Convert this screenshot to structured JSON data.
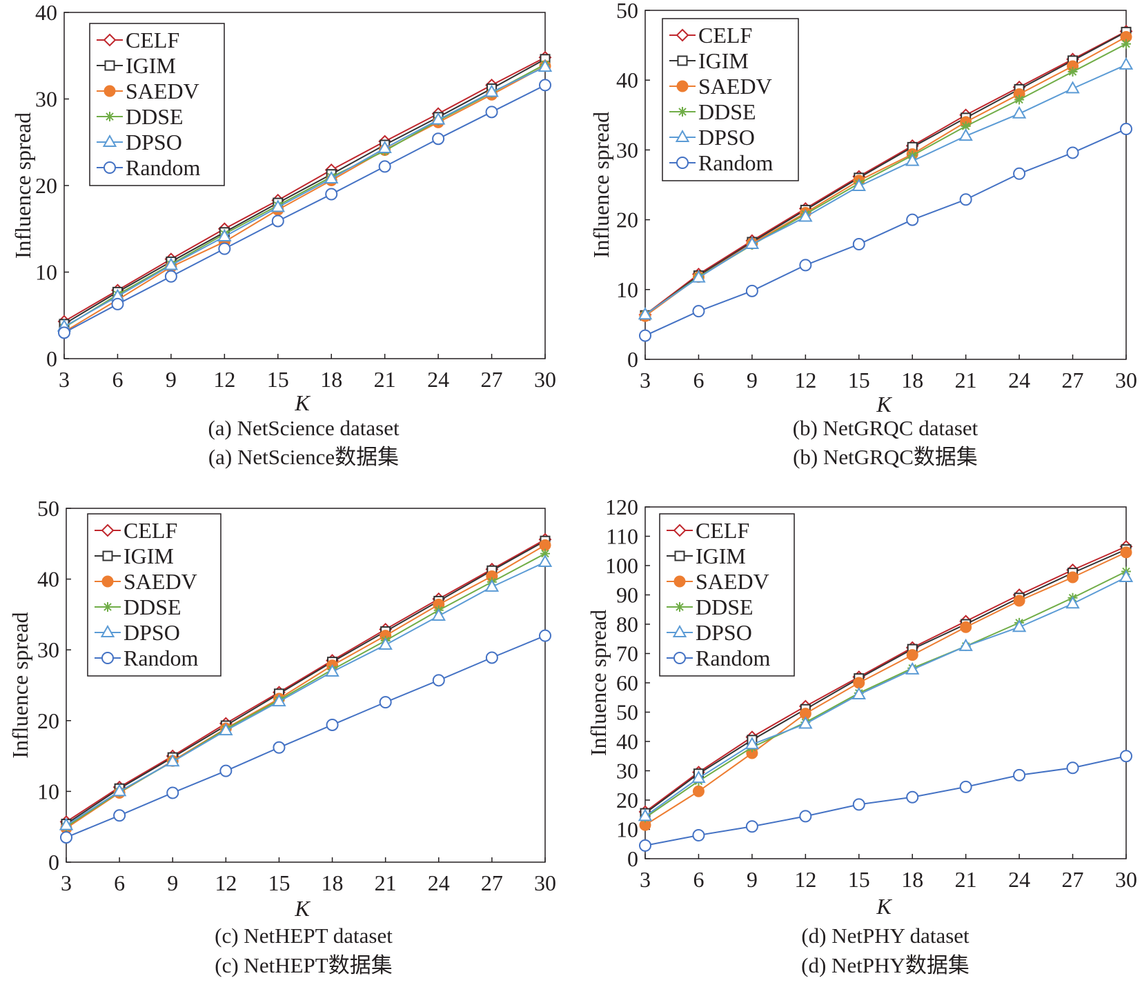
{
  "colors": {
    "CELF": "#c0272d",
    "IGIM": "#333333",
    "SAEDV": "#ed7d31",
    "DDSE": "#70ad47",
    "DPSO": "#5b9bd5",
    "Random": "#4472c4",
    "axis": "#231f20"
  },
  "chart_data": [
    {
      "type": "line",
      "title": "(a) NetScience dataset",
      "title_cn": "(a) NetScience数据集",
      "xlabel": "K",
      "ylabel": "Influence spread",
      "x": [
        3,
        6,
        9,
        12,
        15,
        18,
        21,
        24,
        27,
        30
      ],
      "xticks": [
        3,
        6,
        9,
        12,
        15,
        18,
        21,
        24,
        27,
        30
      ],
      "ylim": [
        0,
        40
      ],
      "yticks": [
        0,
        10,
        20,
        30,
        40
      ],
      "legend_position": "top-left",
      "series": [
        {
          "name": "CELF",
          "marker": "diamond",
          "values": [
            4.3,
            7.9,
            11.5,
            15.0,
            18.3,
            21.8,
            25.1,
            28.3,
            31.6,
            34.8
          ]
        },
        {
          "name": "IGIM",
          "marker": "square",
          "values": [
            4.0,
            7.7,
            11.2,
            14.6,
            18.0,
            21.3,
            24.7,
            27.9,
            31.2,
            34.6
          ]
        },
        {
          "name": "SAEDV",
          "marker": "dot",
          "values": [
            3.1,
            6.8,
            10.6,
            13.5,
            17.2,
            20.6,
            24.1,
            27.3,
            30.5,
            33.8
          ]
        },
        {
          "name": "DDSE",
          "marker": "star",
          "values": [
            3.6,
            7.4,
            10.9,
            14.4,
            17.7,
            21.0,
            24.0,
            27.5,
            30.7,
            34.0
          ]
        },
        {
          "name": "DPSO",
          "marker": "triangle",
          "values": [
            3.7,
            7.2,
            10.8,
            14.1,
            17.5,
            20.8,
            24.3,
            27.6,
            30.8,
            33.7
          ]
        },
        {
          "name": "Random",
          "marker": "circle",
          "values": [
            3.0,
            6.3,
            9.5,
            12.7,
            15.9,
            19.0,
            22.2,
            25.4,
            28.5,
            31.6
          ]
        }
      ]
    },
    {
      "type": "line",
      "title": "(b) NetGRQC dataset",
      "title_cn": "(b) NetGRQC数据集",
      "xlabel": "K",
      "ylabel": "Influence spread",
      "x": [
        3,
        6,
        9,
        12,
        15,
        18,
        21,
        24,
        27,
        30
      ],
      "xticks": [
        3,
        6,
        9,
        12,
        15,
        18,
        21,
        24,
        27,
        30
      ],
      "ylim": [
        0,
        50
      ],
      "yticks": [
        0,
        10,
        20,
        30,
        40,
        50
      ],
      "legend_position": "top-left",
      "series": [
        {
          "name": "CELF",
          "marker": "diamond",
          "values": [
            6.4,
            12.2,
            17.0,
            21.6,
            26.2,
            30.6,
            35.0,
            39.0,
            43.0,
            47.0
          ]
        },
        {
          "name": "IGIM",
          "marker": "square",
          "values": [
            6.3,
            12.0,
            16.8,
            21.4,
            26.0,
            30.4,
            34.6,
            38.7,
            42.8,
            46.9
          ]
        },
        {
          "name": "SAEDV",
          "marker": "dot",
          "values": [
            6.2,
            11.8,
            16.6,
            21.0,
            25.6,
            29.4,
            34.0,
            38.0,
            42.0,
            46.2
          ]
        },
        {
          "name": "DDSE",
          "marker": "star",
          "values": [
            6.4,
            11.8,
            16.4,
            20.8,
            25.2,
            29.2,
            33.4,
            37.2,
            41.2,
            45.2
          ]
        },
        {
          "name": "DPSO",
          "marker": "triangle",
          "values": [
            6.4,
            11.7,
            16.5,
            20.4,
            24.8,
            28.4,
            32.0,
            35.2,
            38.8,
            42.2
          ]
        },
        {
          "name": "Random",
          "marker": "circle",
          "values": [
            3.4,
            6.9,
            9.8,
            13.5,
            16.5,
            20.0,
            22.9,
            26.6,
            29.6,
            33.0
          ]
        }
      ]
    },
    {
      "type": "line",
      "title": "(c) NetHEPT dataset",
      "title_cn": "(c) NetHEPT数据集",
      "xlabel": "K",
      "ylabel": "Influence spread",
      "x": [
        3,
        6,
        9,
        12,
        15,
        18,
        21,
        24,
        27,
        30
      ],
      "xticks": [
        3,
        6,
        9,
        12,
        15,
        18,
        21,
        24,
        27,
        30
      ],
      "ylim": [
        0,
        50
      ],
      "yticks": [
        0,
        10,
        20,
        30,
        40,
        50
      ],
      "legend_position": "top-left",
      "series": [
        {
          "name": "CELF",
          "marker": "diamond",
          "values": [
            5.7,
            10.6,
            15.0,
            19.6,
            24.0,
            28.5,
            32.9,
            37.2,
            41.4,
            45.6
          ]
        },
        {
          "name": "IGIM",
          "marker": "square",
          "values": [
            5.4,
            10.4,
            14.8,
            19.3,
            23.8,
            28.3,
            32.6,
            36.9,
            41.2,
            45.4
          ]
        },
        {
          "name": "SAEDV",
          "marker": "dot",
          "values": [
            4.8,
            9.8,
            14.3,
            18.9,
            23.1,
            27.8,
            32.0,
            36.4,
            40.4,
            44.8
          ]
        },
        {
          "name": "DDSE",
          "marker": "star",
          "values": [
            5.0,
            9.9,
            14.2,
            18.8,
            22.9,
            27.2,
            31.3,
            35.6,
            39.6,
            43.6
          ]
        },
        {
          "name": "DPSO",
          "marker": "triangle",
          "values": [
            5.2,
            10.0,
            14.2,
            18.6,
            22.7,
            26.9,
            30.7,
            34.8,
            38.9,
            42.4
          ]
        },
        {
          "name": "Random",
          "marker": "circle",
          "values": [
            3.5,
            6.6,
            9.8,
            12.9,
            16.2,
            19.4,
            22.6,
            25.7,
            28.9,
            32.0
          ]
        }
      ]
    },
    {
      "type": "line",
      "title": "(d) NetPHY dataset",
      "title_cn": "(d) NetPHY数据集",
      "xlabel": "K",
      "ylabel": "Influence spread",
      "x": [
        3,
        6,
        9,
        12,
        15,
        18,
        21,
        24,
        27,
        30
      ],
      "xticks": [
        3,
        6,
        9,
        12,
        15,
        18,
        21,
        24,
        27,
        30
      ],
      "ylim": [
        0,
        120
      ],
      "yticks": [
        0,
        10,
        20,
        30,
        40,
        50,
        60,
        70,
        80,
        90,
        100,
        110,
        120
      ],
      "legend_position": "top-left",
      "series": [
        {
          "name": "CELF",
          "marker": "diamond",
          "values": [
            16.0,
            29.5,
            41.5,
            52.0,
            62.0,
            72.0,
            81.0,
            90.0,
            98.5,
            106.5
          ]
        },
        {
          "name": "IGIM",
          "marker": "square",
          "values": [
            15.5,
            29.0,
            40.5,
            51.0,
            61.5,
            71.5,
            80.0,
            89.0,
            97.5,
            105.5
          ]
        },
        {
          "name": "SAEDV",
          "marker": "dot",
          "values": [
            11.5,
            23.0,
            36.0,
            49.5,
            60.0,
            69.5,
            79.0,
            88.0,
            96.0,
            104.5
          ]
        },
        {
          "name": "DDSE",
          "marker": "star",
          "values": [
            14.0,
            26.5,
            38.0,
            46.5,
            56.5,
            65.0,
            72.5,
            80.5,
            89.0,
            98.0
          ]
        },
        {
          "name": "DPSO",
          "marker": "triangle",
          "values": [
            14.5,
            27.5,
            39.0,
            46.0,
            56.0,
            64.5,
            72.5,
            79.0,
            87.0,
            96.0
          ]
        },
        {
          "name": "Random",
          "marker": "circle",
          "values": [
            4.5,
            8.0,
            11.0,
            14.5,
            18.5,
            21.0,
            24.5,
            28.5,
            31.0,
            35.0
          ]
        }
      ]
    }
  ]
}
